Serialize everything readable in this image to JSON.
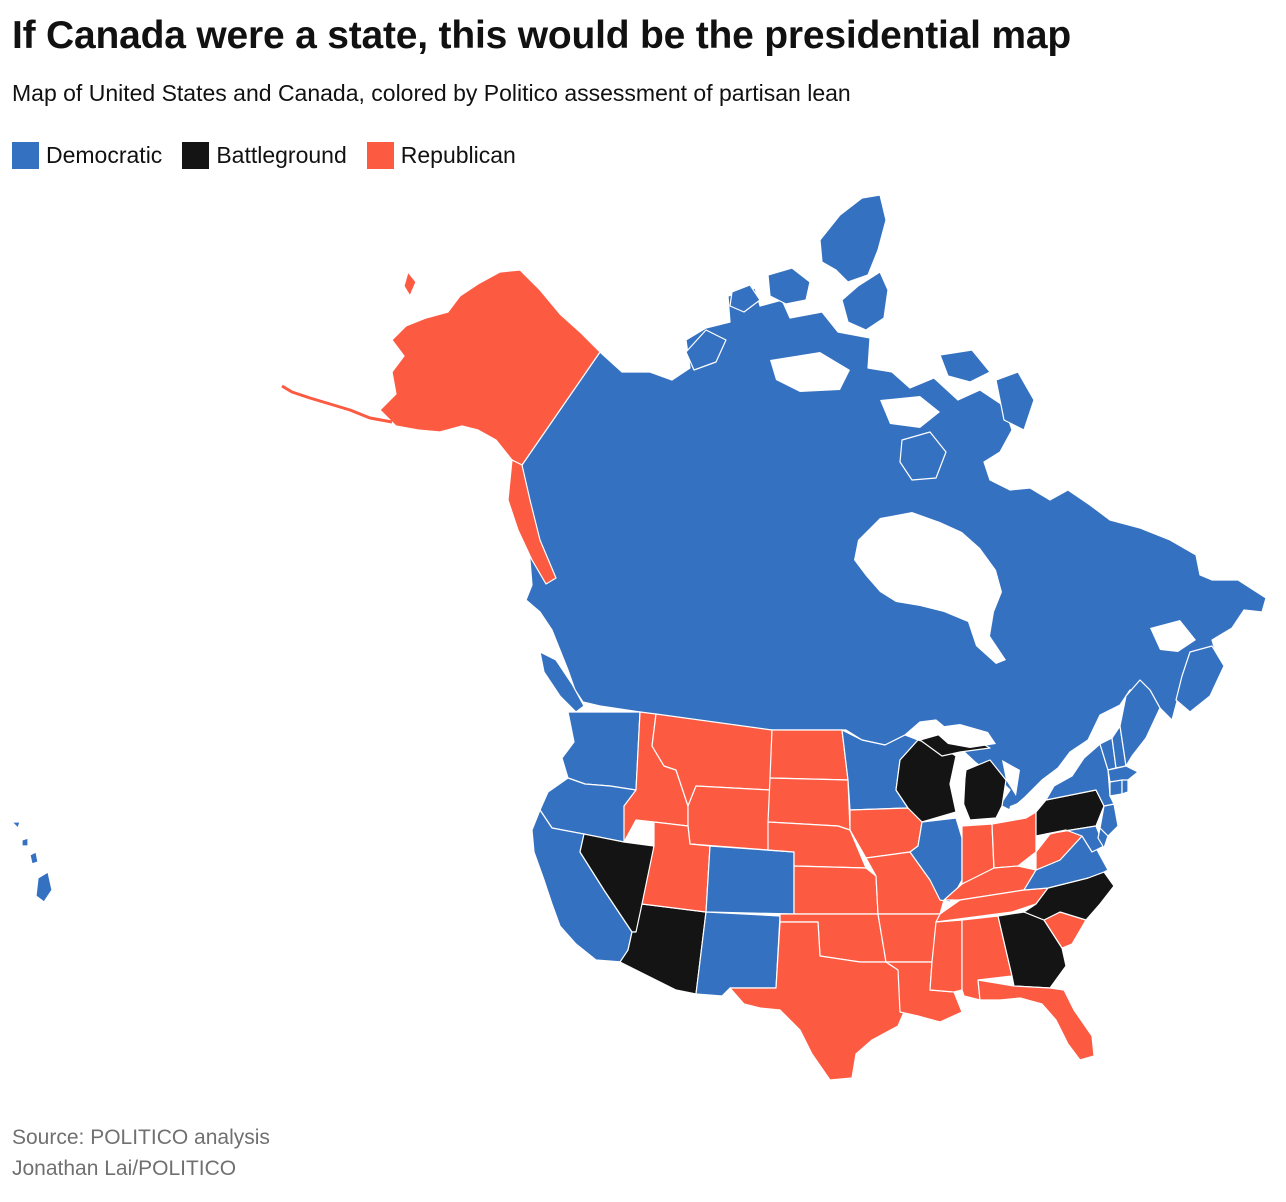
{
  "title": "If Canada were a state, this would be the presidential map",
  "subtitle": "Map of United States and Canada, colored by Politico assessment of partisan lean",
  "legend": [
    {
      "label": "Democratic",
      "color": "#3571c1"
    },
    {
      "label": "Battleground",
      "color": "#141414"
    },
    {
      "label": "Republican",
      "color": "#fd5a42"
    }
  ],
  "footer": {
    "source": "Source: POLITICO analysis",
    "credit": "Jonathan Lai/POLITICO"
  },
  "map_data": {
    "Canada": "Democratic",
    "Alaska": "Republican",
    "Hawaii": "Democratic",
    "Washington": "Democratic",
    "Oregon": "Democratic",
    "California": "Democratic",
    "Nevada": "Battleground",
    "Arizona": "Battleground",
    "Idaho": "Republican",
    "Montana": "Republican",
    "Wyoming": "Republican",
    "Utah": "Republican",
    "Colorado": "Democratic",
    "New Mexico": "Democratic",
    "North Dakota": "Republican",
    "South Dakota": "Republican",
    "Nebraska": "Republican",
    "Kansas": "Republican",
    "Oklahoma": "Republican",
    "Texas": "Republican",
    "Minnesota": "Democratic",
    "Iowa": "Republican",
    "Missouri": "Republican",
    "Arkansas": "Republican",
    "Louisiana": "Republican",
    "Wisconsin": "Battleground",
    "Illinois": "Democratic",
    "Michigan": "Battleground",
    "Indiana": "Republican",
    "Ohio": "Republican",
    "Kentucky": "Republican",
    "Tennessee": "Republican",
    "Mississippi": "Republican",
    "Alabama": "Republican",
    "Georgia": "Battleground",
    "Florida": "Republican",
    "South Carolina": "Republican",
    "North Carolina": "Battleground",
    "Virginia": "Democratic",
    "West Virginia": "Republican",
    "Pennsylvania": "Battleground",
    "New York": "Democratic",
    "Maryland": "Democratic",
    "Delaware": "Democratic",
    "New Jersey": "Democratic",
    "Connecticut": "Democratic",
    "Rhode Island": "Democratic",
    "Massachusetts": "Democratic",
    "Vermont": "Democratic",
    "New Hampshire": "Democratic",
    "Maine": "Democratic"
  }
}
